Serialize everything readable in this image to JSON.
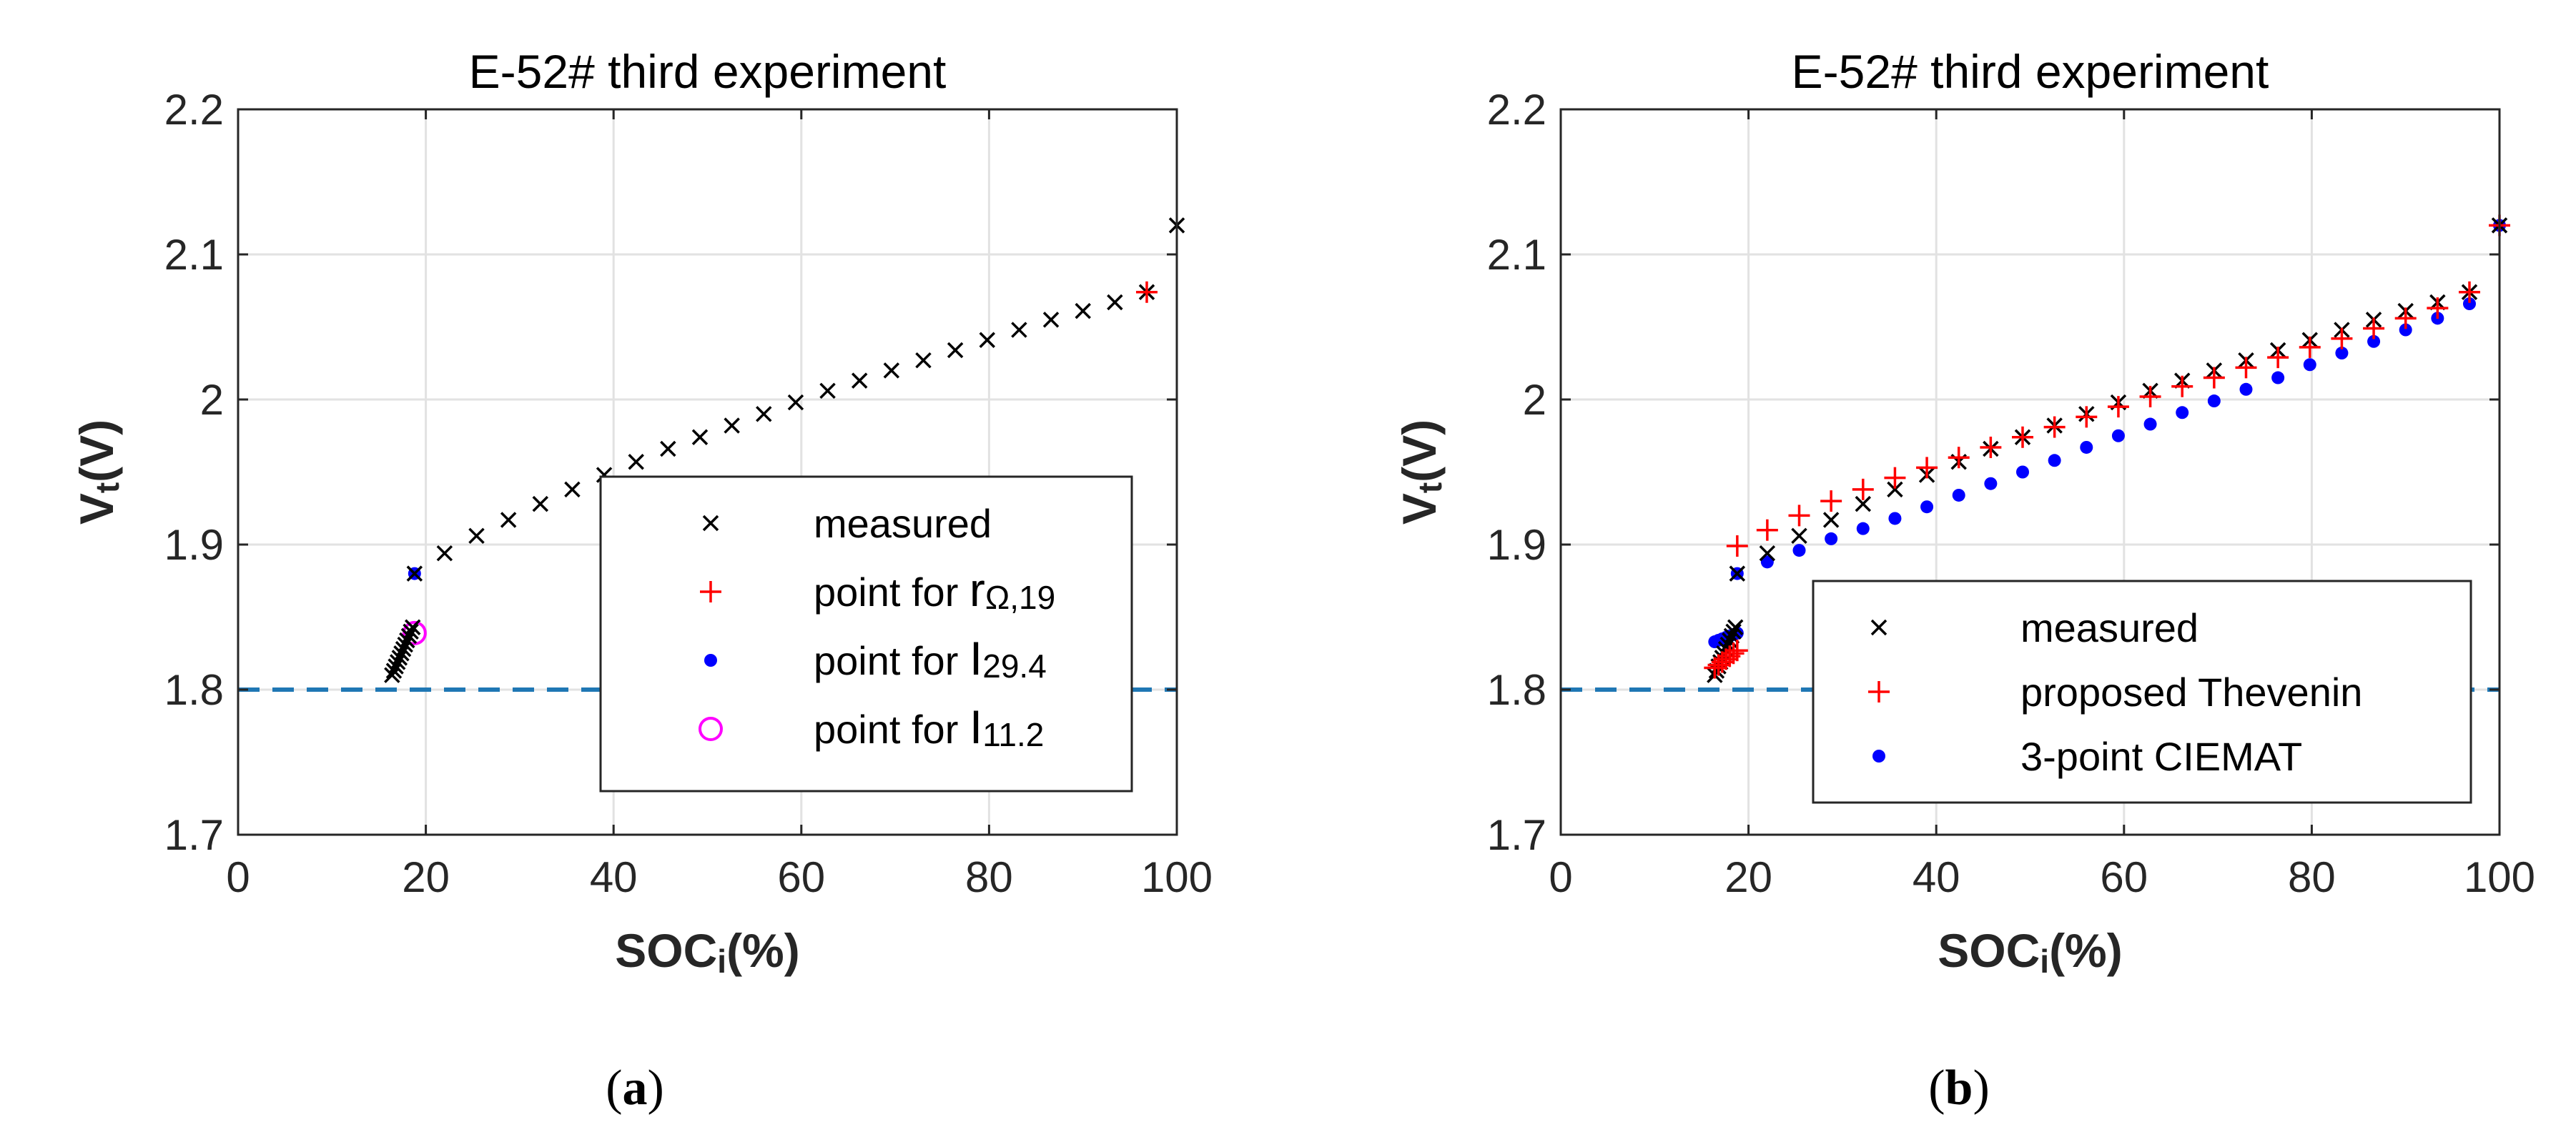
{
  "chart_data": [
    {
      "type": "scatter",
      "panel_label_letter": "a",
      "title": "E-52# third experiment",
      "xlabel_main": "SOC",
      "xlabel_sub": "i",
      "xlabel_unit": "(%)",
      "ylabel_main": "V",
      "ylabel_sub": "t",
      "ylabel_unit": "(V)",
      "xlim": [
        0,
        100
      ],
      "ylim": [
        1.7,
        2.2
      ],
      "xticks": [
        0,
        20,
        40,
        60,
        80,
        100
      ],
      "yticks": [
        1.7,
        1.8,
        1.9,
        2.0,
        2.1,
        2.2
      ],
      "xtick_labels": [
        "0",
        "20",
        "40",
        "60",
        "80",
        "100"
      ],
      "ytick_labels": [
        "1.7",
        "1.8",
        "1.9",
        "2",
        "2.1",
        "2.2"
      ],
      "grid": true,
      "reference_line": {
        "y": 1.8,
        "style": "dashed",
        "color": "#1f77b4"
      },
      "legend_position": "lower-right",
      "series": [
        {
          "name": "measured",
          "legend_parts": [
            "measured"
          ],
          "marker": "x",
          "color": "#000000",
          "x": [
            16.4,
            16.6,
            16.8,
            17.0,
            17.2,
            17.4,
            17.6,
            17.8,
            18.0,
            18.2,
            18.4,
            18.6,
            18.8,
            22.0,
            25.4,
            28.8,
            32.2,
            35.6,
            39.0,
            42.4,
            45.8,
            49.2,
            52.6,
            56.0,
            59.4,
            62.8,
            66.2,
            69.6,
            73.0,
            76.4,
            79.8,
            83.2,
            86.6,
            90.0,
            93.4,
            96.8,
            100.0
          ],
          "y": [
            1.81,
            1.813,
            1.816,
            1.819,
            1.822,
            1.825,
            1.828,
            1.831,
            1.834,
            1.837,
            1.84,
            1.843,
            1.88,
            1.894,
            1.906,
            1.917,
            1.928,
            1.938,
            1.948,
            1.957,
            1.966,
            1.974,
            1.982,
            1.99,
            1.998,
            2.006,
            2.013,
            2.02,
            2.027,
            2.034,
            2.041,
            2.048,
            2.055,
            2.061,
            2.067,
            2.074,
            2.12
          ]
        },
        {
          "name": "point for r Ω,19",
          "legend_parts": [
            "point for ",
            "r",
            "Ω,19"
          ],
          "marker": "plus",
          "color": "#ff0000",
          "x": [
            96.8
          ],
          "y": [
            2.074
          ]
        },
        {
          "name": "point for I 29.4",
          "legend_parts": [
            "point for ",
            "I",
            "29.4"
          ],
          "marker": "dot",
          "color": "#0000ff",
          "x": [
            18.8
          ],
          "y": [
            1.88
          ]
        },
        {
          "name": "point for I 11.2",
          "legend_parts": [
            "point for ",
            "I",
            "11.2"
          ],
          "marker": "circle",
          "color": "#ff00ff",
          "x": [
            18.8
          ],
          "y": [
            1.839
          ]
        }
      ]
    },
    {
      "type": "scatter",
      "panel_label_letter": "b",
      "title": "E-52# third experiment",
      "xlabel_main": "SOC",
      "xlabel_sub": "i",
      "xlabel_unit": "(%)",
      "ylabel_main": "V",
      "ylabel_sub": "t",
      "ylabel_unit": "(V)",
      "xlim": [
        0,
        100
      ],
      "ylim": [
        1.7,
        2.2
      ],
      "xticks": [
        0,
        20,
        40,
        60,
        80,
        100
      ],
      "yticks": [
        1.7,
        1.8,
        1.9,
        2.0,
        2.1,
        2.2
      ],
      "xtick_labels": [
        "0",
        "20",
        "40",
        "60",
        "80",
        "100"
      ],
      "ytick_labels": [
        "1.7",
        "1.8",
        "1.9",
        "2",
        "2.1",
        "2.2"
      ],
      "grid": true,
      "reference_line": {
        "y": 1.8,
        "style": "dashed",
        "color": "#1f77b4"
      },
      "legend_position": "lower-right",
      "series": [
        {
          "name": "measured",
          "legend_parts": [
            "measured"
          ],
          "marker": "x",
          "color": "#000000",
          "x": [
            16.4,
            16.6,
            16.8,
            17.0,
            17.2,
            17.4,
            17.6,
            17.8,
            18.0,
            18.2,
            18.4,
            18.6,
            18.8,
            22.0,
            25.4,
            28.8,
            32.2,
            35.6,
            39.0,
            42.4,
            45.8,
            49.2,
            52.6,
            56.0,
            59.4,
            62.8,
            66.2,
            69.6,
            73.0,
            76.4,
            79.8,
            83.2,
            86.6,
            90.0,
            93.4,
            96.8,
            100.0
          ],
          "y": [
            1.81,
            1.813,
            1.816,
            1.819,
            1.822,
            1.825,
            1.828,
            1.831,
            1.834,
            1.837,
            1.84,
            1.843,
            1.88,
            1.894,
            1.906,
            1.917,
            1.928,
            1.938,
            1.948,
            1.957,
            1.966,
            1.974,
            1.982,
            1.99,
            1.998,
            2.006,
            2.013,
            2.02,
            2.027,
            2.034,
            2.041,
            2.048,
            2.055,
            2.061,
            2.067,
            2.074,
            2.12
          ]
        },
        {
          "name": "proposed Thevenin",
          "legend_parts": [
            "proposed Thevenin"
          ],
          "marker": "plus",
          "color": "#ff0000",
          "x": [
            16.4,
            16.8,
            17.2,
            17.6,
            18.0,
            18.4,
            18.8,
            18.8,
            22.0,
            25.4,
            28.8,
            32.2,
            35.6,
            39.0,
            42.4,
            45.8,
            49.2,
            52.6,
            56.0,
            59.4,
            62.8,
            66.2,
            69.6,
            73.0,
            76.4,
            79.8,
            83.2,
            86.6,
            90.0,
            93.4,
            96.8,
            100.0
          ],
          "y": [
            1.815,
            1.817,
            1.819,
            1.821,
            1.823,
            1.825,
            1.827,
            1.899,
            1.91,
            1.92,
            1.93,
            1.938,
            1.946,
            1.953,
            1.96,
            1.967,
            1.974,
            1.981,
            1.988,
            1.995,
            2.002,
            2.009,
            2.015,
            2.022,
            2.029,
            2.036,
            2.042,
            2.049,
            2.056,
            2.063,
            2.074,
            2.12
          ]
        },
        {
          "name": "3-point CIEMAT",
          "legend_parts": [
            "3-point CIEMAT"
          ],
          "marker": "dot",
          "color": "#0000ff",
          "x": [
            16.4,
            16.8,
            17.2,
            17.6,
            18.0,
            18.4,
            18.8,
            18.8,
            22.0,
            25.4,
            28.8,
            32.2,
            35.6,
            39.0,
            42.4,
            45.8,
            49.2,
            52.6,
            56.0,
            59.4,
            62.8,
            66.2,
            69.6,
            73.0,
            76.4,
            79.8,
            83.2,
            86.6,
            90.0,
            93.4,
            96.8,
            100.0
          ],
          "y": [
            1.833,
            1.834,
            1.835,
            1.836,
            1.837,
            1.838,
            1.839,
            1.88,
            1.888,
            1.896,
            1.904,
            1.911,
            1.918,
            1.926,
            1.934,
            1.942,
            1.95,
            1.958,
            1.967,
            1.975,
            1.983,
            1.991,
            1.999,
            2.007,
            2.015,
            2.024,
            2.032,
            2.04,
            2.048,
            2.056,
            2.066,
            2.12
          ]
        }
      ]
    }
  ]
}
